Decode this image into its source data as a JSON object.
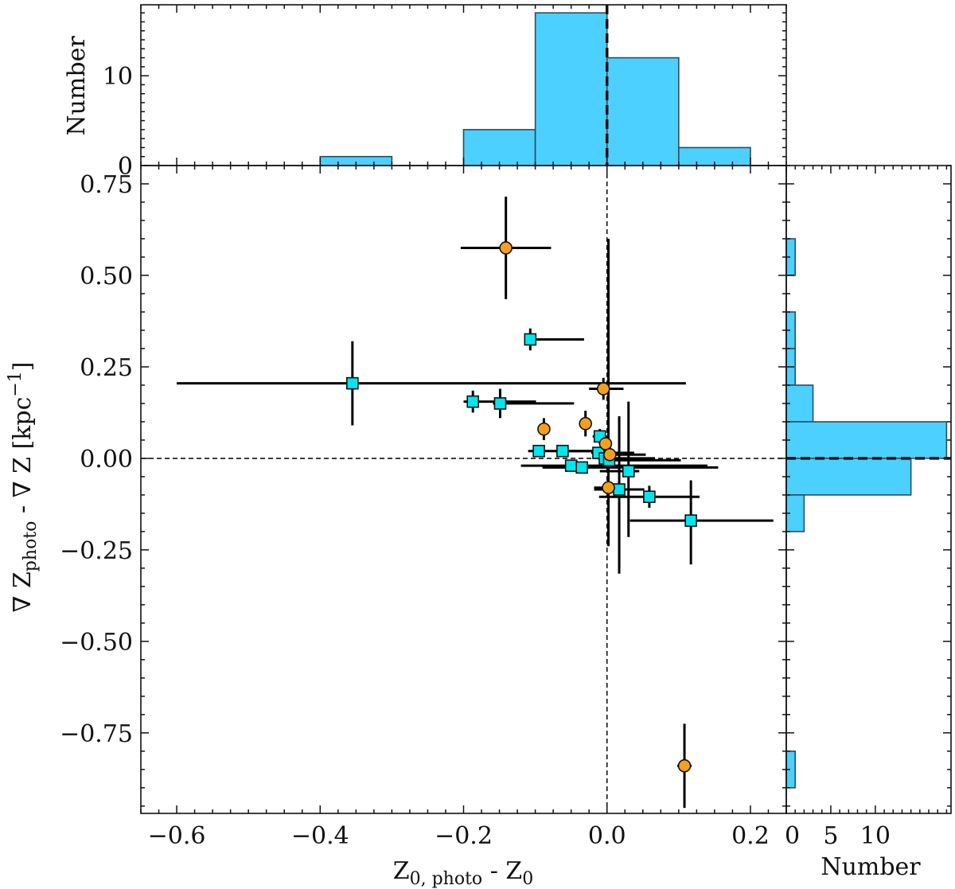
{
  "chart_data": [
    {
      "id": "main",
      "type": "scatter",
      "xlabel": {
        "main": "Z",
        "sub": "0, photo",
        "mid": " - Z",
        "sub2": "0"
      },
      "ylabel": {
        "pre": "∇ Z",
        "sub": "photo",
        "mid": " - ∇ Z [kpc",
        "sup": "−1",
        "post": "]"
      },
      "xlim": [
        -0.65,
        0.25
      ],
      "ylim": [
        -0.97,
        0.8
      ],
      "xticks": [
        -0.6,
        -0.4,
        -0.2,
        0.0,
        0.2
      ],
      "xtick_labels": [
        "−0.6",
        "−0.4",
        "−0.2",
        "0.0",
        "0.2"
      ],
      "yticks": [
        0.75,
        0.5,
        0.25,
        0.0,
        -0.25,
        -0.5,
        -0.75
      ],
      "ytick_labels": [
        "0.75",
        "0.50",
        "0.25",
        "0.00",
        "−0.25",
        "−0.50",
        "−0.75"
      ],
      "reference_lines": {
        "x": 0.0,
        "y": 0.0
      },
      "series": [
        {
          "name": "squares",
          "marker": "square",
          "color": "#00e6ee",
          "points": [
            {
              "x": -0.355,
              "y": 0.205,
              "xerr": [
                0.245,
                0.465
              ],
              "yerr": [
                0.115,
                0.115
              ]
            },
            {
              "x": -0.107,
              "y": 0.325,
              "xerr": [
                0.003,
                0.075
              ],
              "yerr": [
                0.03,
                0.03
              ]
            },
            {
              "x": -0.187,
              "y": 0.155,
              "xerr": [
                0.013,
                0.088
              ],
              "yerr": [
                0.03,
                0.03
              ]
            },
            {
              "x": -0.149,
              "y": 0.15,
              "xerr": [
                0.01,
                0.103
              ],
              "yerr": [
                0.04,
                0.04
              ]
            },
            {
              "x": -0.095,
              "y": 0.02,
              "xerr": [
                0.015,
                0.095
              ],
              "yerr": [
                0.01,
                0.01
              ]
            },
            {
              "x": -0.062,
              "y": 0.02,
              "xerr": [
                0.01,
                0.07
              ],
              "yerr": [
                0.01,
                0.01
              ]
            },
            {
              "x": -0.05,
              "y": -0.02,
              "xerr": [
                0.07,
                0.19
              ],
              "yerr": [
                0.012,
                0.012
              ]
            },
            {
              "x": -0.035,
              "y": -0.025,
              "xerr": [
                0.055,
                0.19
              ],
              "yerr": [
                0.012,
                0.012
              ]
            },
            {
              "x": -0.01,
              "y": 0.06,
              "xerr": [
                0.01,
                0.01
              ],
              "yerr": [
                0.02,
                0.02
              ]
            },
            {
              "x": -0.012,
              "y": 0.015,
              "xerr": [
                0.01,
                0.05
              ],
              "yerr": [
                0.01,
                0.01
              ]
            },
            {
              "x": -0.003,
              "y": 0.0,
              "xerr": [
                0.01,
                0.07
              ],
              "yerr": [
                0.01,
                0.01
              ]
            },
            {
              "x": 0.003,
              "y": -0.005,
              "xerr": [
                0.005,
                0.1
              ],
              "yerr": [
                0.01,
                0.01
              ]
            },
            {
              "x": 0.017,
              "y": -0.085,
              "xerr": [
                0.035,
                0.035
              ],
              "yerr": [
                0.23,
                0.2
              ]
            },
            {
              "x": 0.03,
              "y": -0.035,
              "xerr": [
                0.04,
                0.015
              ],
              "yerr": [
                0.18,
                0.19
              ]
            },
            {
              "x": 0.059,
              "y": -0.105,
              "xerr": [
                0.07,
                0.07
              ],
              "yerr": [
                0.03,
                0.03
              ]
            },
            {
              "x": 0.117,
              "y": -0.17,
              "xerr": [
                0.085,
                0.115
              ],
              "yerr": [
                0.12,
                0.11
              ]
            }
          ]
        },
        {
          "name": "circles",
          "marker": "circle",
          "color": "#f5a01c",
          "points": [
            {
              "x": -0.141,
              "y": 0.575,
              "xerr": [
                0.063,
                0.063
              ],
              "yerr": [
                0.14,
                0.14
              ]
            },
            {
              "x": -0.088,
              "y": 0.08,
              "xerr": [
                0.005,
                0.005
              ],
              "yerr": [
                0.03,
                0.03
              ]
            },
            {
              "x": -0.03,
              "y": 0.095,
              "xerr": [
                0.007,
                0.007
              ],
              "yerr": [
                0.035,
                0.035
              ]
            },
            {
              "x": -0.005,
              "y": 0.19,
              "xerr": [
                0.02,
                0.028
              ],
              "yerr": [
                0.03,
                0.03
              ]
            },
            {
              "x": -0.002,
              "y": 0.04,
              "xerr": [
                0.005,
                0.005
              ],
              "yerr": [
                0.02,
                0.02
              ]
            },
            {
              "x": 0.004,
              "y": 0.01,
              "xerr": [
                0.01,
                0.05
              ],
              "yerr": [
                0.02,
                0.02
              ]
            },
            {
              "x": 0.002,
              "y": -0.08,
              "xerr": [
                0.02,
                0.02
              ],
              "yerr": [
                0.16,
                0.68
              ]
            },
            {
              "x": 0.108,
              "y": -0.84,
              "xerr": [
                0.01,
                0.01
              ],
              "yerr": [
                0.115,
                0.115
              ]
            }
          ]
        }
      ]
    },
    {
      "id": "top-histogram",
      "type": "bar",
      "ylabel": "Number",
      "ylim": [
        0,
        17.9
      ],
      "yticks": [
        0,
        10
      ],
      "ytick_labels": [
        "0",
        "10"
      ],
      "reference_line_x": 0.0,
      "bins": [
        {
          "from": -0.4,
          "to": -0.3,
          "count": 1
        },
        {
          "from": -0.2,
          "to": -0.1,
          "count": 4
        },
        {
          "from": -0.1,
          "to": 0.0,
          "count": 17
        },
        {
          "from": 0.0,
          "to": 0.1,
          "count": 12
        },
        {
          "from": 0.1,
          "to": 0.2,
          "count": 2
        }
      ]
    },
    {
      "id": "right-histogram",
      "type": "bar",
      "orientation": "horizontal",
      "xlabel": "Number",
      "xlim": [
        0,
        18.5
      ],
      "xticks": [
        0,
        5,
        10
      ],
      "xtick_labels": [
        "0",
        "5",
        "10"
      ],
      "reference_line_y": 0.0,
      "bins": [
        {
          "from": 0.5,
          "to": 0.6,
          "count": 1
        },
        {
          "from": 0.3,
          "to": 0.4,
          "count": 1
        },
        {
          "from": 0.2,
          "to": 0.3,
          "count": 1
        },
        {
          "from": 0.1,
          "to": 0.2,
          "count": 3
        },
        {
          "from": 0.0,
          "to": 0.1,
          "count": 18
        },
        {
          "from": -0.1,
          "to": 0.0,
          "count": 14
        },
        {
          "from": -0.2,
          "to": -0.1,
          "count": 2
        },
        {
          "from": -0.9,
          "to": -0.8,
          "count": 1
        }
      ]
    }
  ]
}
